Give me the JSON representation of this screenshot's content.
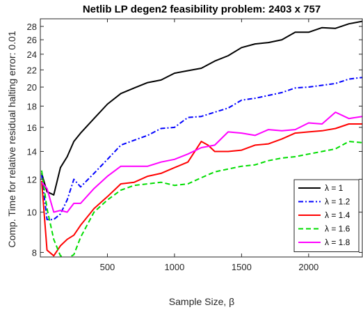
{
  "chart_data": {
    "type": "line",
    "title": "Netlib LP degen2 feasibility problem: 2403 x 757",
    "xlabel": "Sample Size, β",
    "ylabel": "Comp. Time for relative residual halting error: 0.01",
    "xlim": [
      0,
      2400
    ],
    "ylim": [
      7.8,
      29.2
    ],
    "yscale": "log",
    "grid": false,
    "legend_position": "bottom-right",
    "x_ticks": [
      "500",
      "1000",
      "1500",
      "2000"
    ],
    "y_ticks": [
      "8",
      "10",
      "12",
      "14",
      "16",
      "18",
      "20",
      "22",
      "24",
      "26",
      "28"
    ],
    "series": [
      {
        "name": "λ = 1",
        "color": "#000000",
        "dash": "solid",
        "x": [
          10,
          50,
          100,
          150,
          200,
          250,
          300,
          400,
          500,
          600,
          700,
          800,
          900,
          1000,
          1100,
          1200,
          1300,
          1400,
          1500,
          1600,
          1700,
          1800,
          1900,
          2000,
          2100,
          2200,
          2300,
          2400
        ],
        "values": [
          12.4,
          11.2,
          11.0,
          12.8,
          13.6,
          14.8,
          15.5,
          16.8,
          18.2,
          19.3,
          19.9,
          20.5,
          20.8,
          21.6,
          21.9,
          22.2,
          23.1,
          23.8,
          24.9,
          25.4,
          25.6,
          26.0,
          27.1,
          27.1,
          27.8,
          27.7,
          28.4,
          28.8
        ]
      },
      {
        "name": "λ = 1.2",
        "color": "#0000ff",
        "dash": "dashdot",
        "x": [
          10,
          50,
          100,
          150,
          200,
          250,
          300,
          400,
          500,
          600,
          700,
          800,
          900,
          1000,
          1100,
          1200,
          1300,
          1400,
          1500,
          1600,
          1700,
          1800,
          1900,
          2000,
          2100,
          2200,
          2300,
          2400
        ],
        "values": [
          12.3,
          9.6,
          9.6,
          9.9,
          10.7,
          12.0,
          11.5,
          12.4,
          13.4,
          14.5,
          14.9,
          15.3,
          15.9,
          16.0,
          16.9,
          17.0,
          17.4,
          17.8,
          18.6,
          18.8,
          19.1,
          19.4,
          19.9,
          20.0,
          20.2,
          20.4,
          20.9,
          21.1
        ]
      },
      {
        "name": "λ = 1.4",
        "color": "#ff0000",
        "dash": "solid",
        "x": [
          10,
          50,
          100,
          150,
          200,
          250,
          300,
          400,
          500,
          600,
          700,
          800,
          900,
          1000,
          1100,
          1200,
          1250,
          1300,
          1400,
          1500,
          1600,
          1700,
          1800,
          1900,
          2000,
          2100,
          2200,
          2300,
          2400
        ],
        "values": [
          11.9,
          8.1,
          7.85,
          8.3,
          8.6,
          8.8,
          9.3,
          10.2,
          10.9,
          11.7,
          11.8,
          12.2,
          12.4,
          12.8,
          13.2,
          14.8,
          14.5,
          14.0,
          14.0,
          14.1,
          14.5,
          14.6,
          15.0,
          15.5,
          15.6,
          15.7,
          15.9,
          16.3,
          16.3
        ]
      },
      {
        "name": "λ = 1.6",
        "color": "#00dd00",
        "dash": "dashed",
        "x": [
          10,
          50,
          100,
          150,
          200,
          250,
          300,
          400,
          500,
          600,
          700,
          800,
          900,
          1000,
          1100,
          1200,
          1300,
          1400,
          1500,
          1600,
          1700,
          1800,
          1900,
          2000,
          2100,
          2200,
          2300,
          2400
        ],
        "values": [
          12.6,
          10.2,
          8.6,
          7.85,
          7.75,
          7.9,
          8.7,
          10.0,
          10.7,
          11.3,
          11.6,
          11.7,
          11.8,
          11.6,
          11.7,
          12.1,
          12.5,
          12.7,
          12.9,
          13.0,
          13.3,
          13.5,
          13.6,
          13.8,
          14.0,
          14.2,
          14.8,
          14.7
        ]
      },
      {
        "name": "λ = 1.8",
        "color": "#ff00ff",
        "dash": "solid",
        "x": [
          10,
          50,
          100,
          150,
          200,
          250,
          300,
          400,
          500,
          600,
          700,
          800,
          900,
          1000,
          1100,
          1200,
          1300,
          1400,
          1500,
          1600,
          1700,
          1800,
          1900,
          2000,
          2100,
          2200,
          2300,
          2400
        ],
        "values": [
          11.8,
          11.4,
          10.0,
          10.1,
          10.0,
          10.5,
          10.5,
          11.4,
          12.2,
          12.9,
          12.9,
          12.9,
          13.2,
          13.4,
          13.8,
          14.3,
          14.5,
          15.6,
          15.5,
          15.3,
          15.8,
          15.7,
          15.8,
          16.4,
          16.3,
          17.4,
          16.8,
          17.0
        ]
      }
    ]
  }
}
